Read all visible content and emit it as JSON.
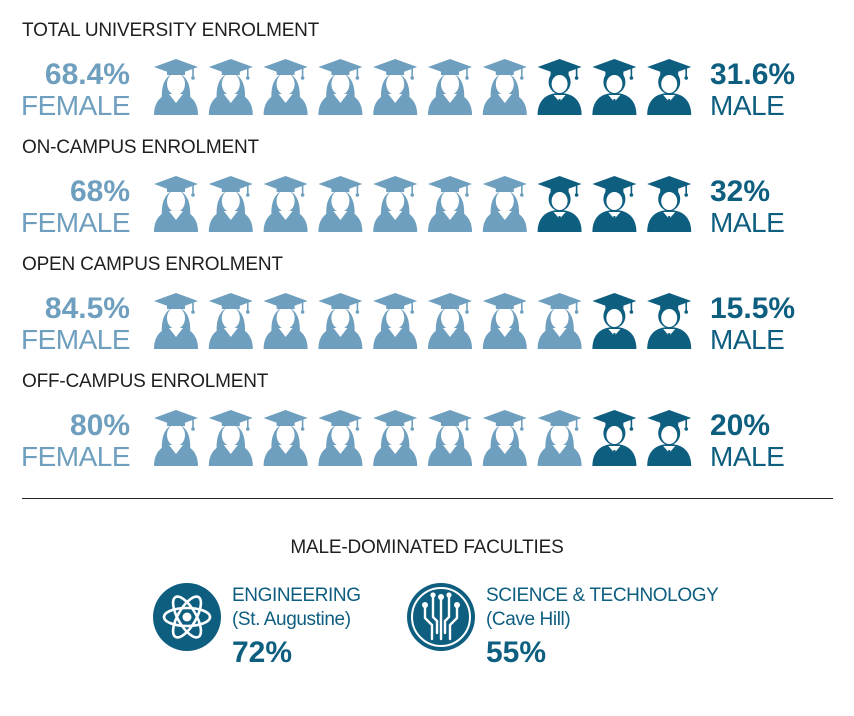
{
  "colors": {
    "female": "#6f9fbe",
    "male": "#0e5e80",
    "text": "#1f1f1f"
  },
  "chart_data": [
    {
      "type": "pictogram",
      "title": "TOTAL UNIVERSITY ENROLMENT",
      "female_pct": "68.4%",
      "female_label": "FEMALE",
      "male_pct": "31.6%",
      "male_label": "MALE",
      "female_icons": 7,
      "male_icons": 3,
      "total_icons": 10
    },
    {
      "type": "pictogram",
      "title": "ON-CAMPUS ENROLMENT",
      "female_pct": "68%",
      "female_label": "FEMALE",
      "male_pct": "32%",
      "male_label": "MALE",
      "female_icons": 7,
      "male_icons": 3,
      "total_icons": 10
    },
    {
      "type": "pictogram",
      "title": "OPEN CAMPUS ENROLMENT",
      "female_pct": "84.5%",
      "female_label": "FEMALE",
      "male_pct": "15.5%",
      "male_label": "MALE",
      "female_icons": 8,
      "male_icons": 2,
      "total_icons": 10
    },
    {
      "type": "pictogram",
      "title": "OFF-CAMPUS ENROLMENT",
      "female_pct": "80%",
      "female_label": "FEMALE",
      "male_pct": "20%",
      "male_label": "MALE",
      "female_icons": 8,
      "male_icons": 2,
      "total_icons": 10
    }
  ],
  "faculties": {
    "title": "MALE-DOMINATED FACULTIES",
    "items": [
      {
        "name": "ENGINEERING",
        "campus": "(St. Augustine)",
        "pct": "72%",
        "icon": "atom-icon"
      },
      {
        "name": "SCIENCE & TECHNOLOGY",
        "campus": "(Cave Hill)",
        "pct": "55%",
        "icon": "circuit-icon"
      }
    ]
  }
}
